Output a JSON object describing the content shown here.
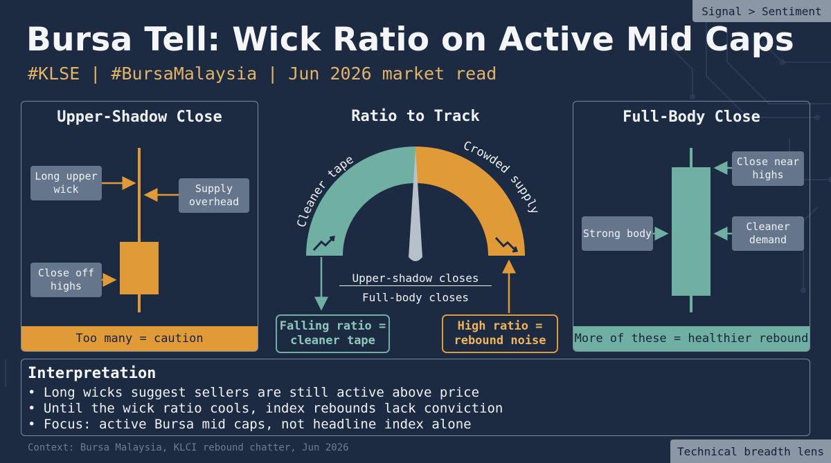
{
  "header": {
    "tag": "Signal > Sentiment",
    "title": "Bursa Tell: Wick Ratio on Active Mid Caps",
    "subtitle": "#KLSE | #BursaMalaysia | Jun 2026 market read"
  },
  "left_panel": {
    "title": "Upper-Shadow Close",
    "labels": {
      "long_upper_wick": "Long upper wick",
      "supply_overhead": "Supply overhead",
      "close_off_highs": "Close off highs"
    },
    "footer": "Too many = caution"
  },
  "center": {
    "title": "Ratio to Track",
    "gauge_left_label": "Cleaner tape",
    "gauge_right_label": "Crowded supply",
    "ratio_numerator": "Upper-shadow closes",
    "ratio_denominator": "Full-body closes",
    "callout_left": "Falling ratio = cleaner tape",
    "callout_right": "High ratio = rebound noise"
  },
  "right_panel": {
    "title": "Full-Body Close",
    "labels": {
      "close_near_highs": "Close near highs",
      "strong_body": "Strong body",
      "cleaner_demand": "Cleaner demand"
    },
    "footer": "More of these = healthier rebound"
  },
  "interpretation": {
    "title": "Interpretation",
    "bullets": [
      "•  Long wicks suggest sellers are still active above price",
      "•  Until the wick ratio cools, index rebounds lack conviction",
      "•  Focus: active Bursa mid caps, not headline index alone"
    ]
  },
  "footer": {
    "context": "Context: Bursa Malaysia, KLCI rebound chatter, Jun 2026",
    "tag": "Technical breadth lens"
  },
  "colors": {
    "background": "#1c2a42",
    "accent_orange": "#e09a38",
    "accent_teal": "#6fb0a2",
    "subtitle_gold": "#e3b366"
  }
}
